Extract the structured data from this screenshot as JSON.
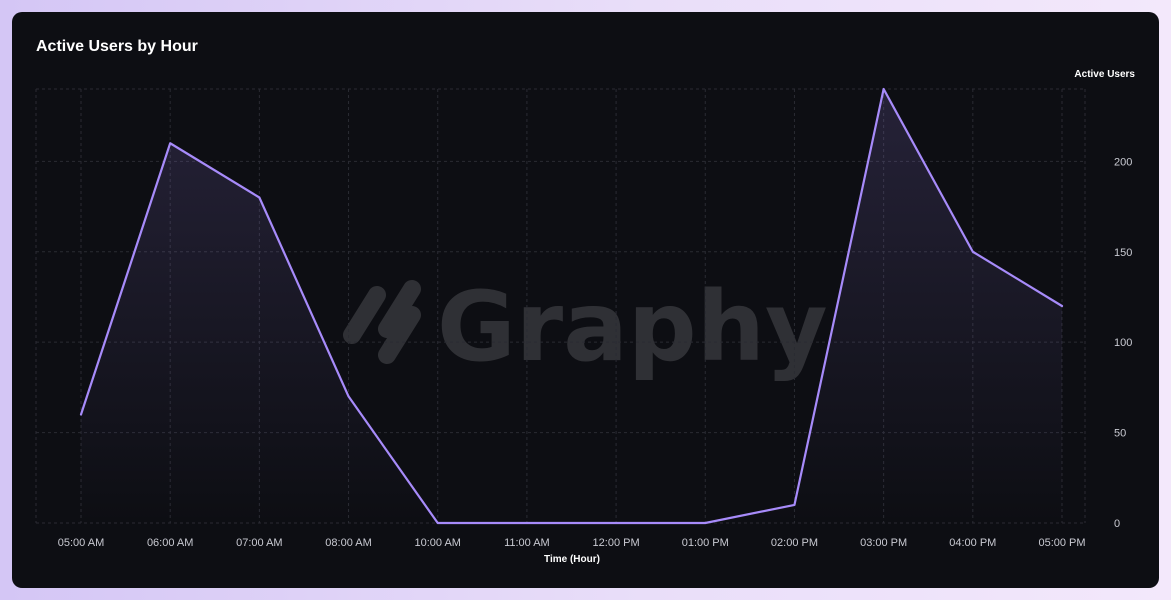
{
  "chart_data": {
    "type": "area",
    "title": "Active Users by Hour",
    "xlabel": "Time (Hour)",
    "ylabel": "Active Users",
    "categories": [
      "05:00 AM",
      "06:00 AM",
      "07:00 AM",
      "08:00 AM",
      "10:00 AM",
      "11:00 AM",
      "12:00 PM",
      "01:00 PM",
      "02:00 PM",
      "03:00 PM",
      "04:00 PM",
      "05:00 PM"
    ],
    "series": [
      {
        "name": "Active Users",
        "values": [
          60,
          210,
          180,
          70,
          0,
          0,
          0,
          0,
          10,
          240,
          150,
          120
        ]
      }
    ],
    "yticks": [
      0,
      50,
      100,
      150,
      200
    ],
    "ylim": [
      0,
      240
    ],
    "grid": true,
    "line_color": "#a78bfa",
    "fill_color": "#a78bfa"
  },
  "watermark": {
    "text": "Graphy"
  }
}
